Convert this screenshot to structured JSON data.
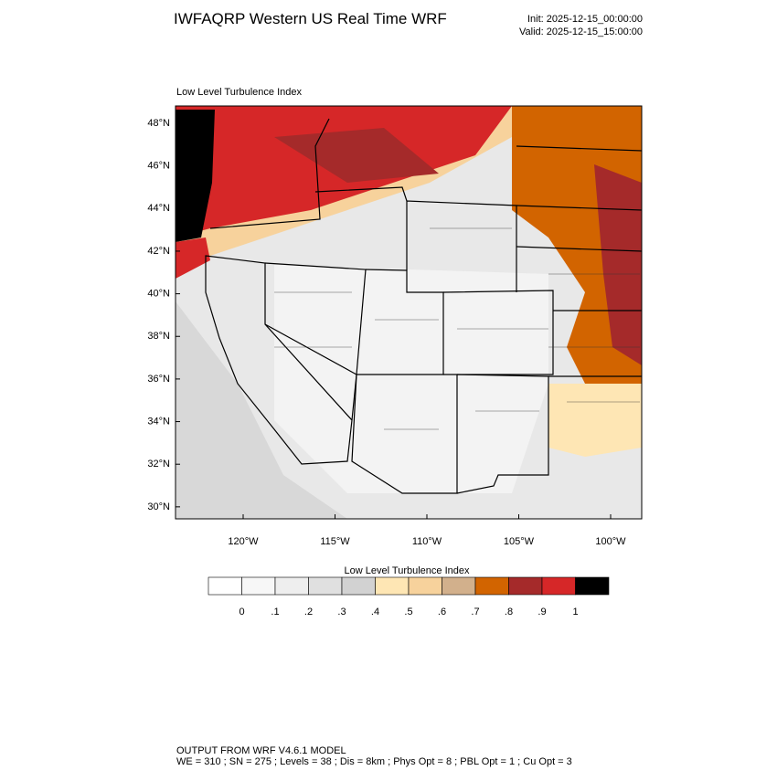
{
  "header": {
    "title": "IWFAQRP Western US Real Time WRF",
    "init": "Init: 2025-12-15_00:00:00",
    "valid": "Valid: 2025-12-15_15:00:00"
  },
  "map": {
    "subtitle": "Low Level Turbulence Index",
    "lat_labels": [
      "48°N",
      "46°N",
      "44°N",
      "42°N",
      "40°N",
      "38°N",
      "36°N",
      "34°N",
      "32°N",
      "30°N"
    ],
    "lon_labels": [
      "120°W",
      "115°W",
      "110°W",
      "105°W",
      "100°W"
    ]
  },
  "colorbar": {
    "title": "Low Level Turbulence Index",
    "levels": [
      0,
      {
        "value": 0.1,
        "label": ".1"
      },
      {
        "value": 0.2,
        "label": ".2"
      },
      {
        "value": 0.3,
        "label": ".3"
      },
      {
        "value": 0.4,
        "label": ".4"
      },
      {
        "value": 0.5,
        "label": ".5"
      },
      {
        "value": 0.6,
        "label": ".6"
      },
      {
        "value": 0.7,
        "label": ".7"
      },
      {
        "value": 0.8,
        "label": ".8"
      },
      {
        "value": 0.9,
        "label": ".9"
      },
      1
    ],
    "colors": [
      "#ffffff",
      "#f7f7f7",
      "#eeeeee",
      "#e0e0e0",
      "#d2d2d2",
      "#fee6b4",
      "#f7d29c",
      "#d2b08c",
      "#d26400",
      "#a52a2a",
      "#d62728",
      "#000000"
    ]
  },
  "footer": {
    "line1": "OUTPUT FROM WRF V4.6.1 MODEL",
    "line2": "WE = 310 ; SN = 275 ; Levels = 38 ; Dis = 8km ; Phys Opt = 8 ; PBL Opt = 1 ; Cu Opt = 3"
  }
}
